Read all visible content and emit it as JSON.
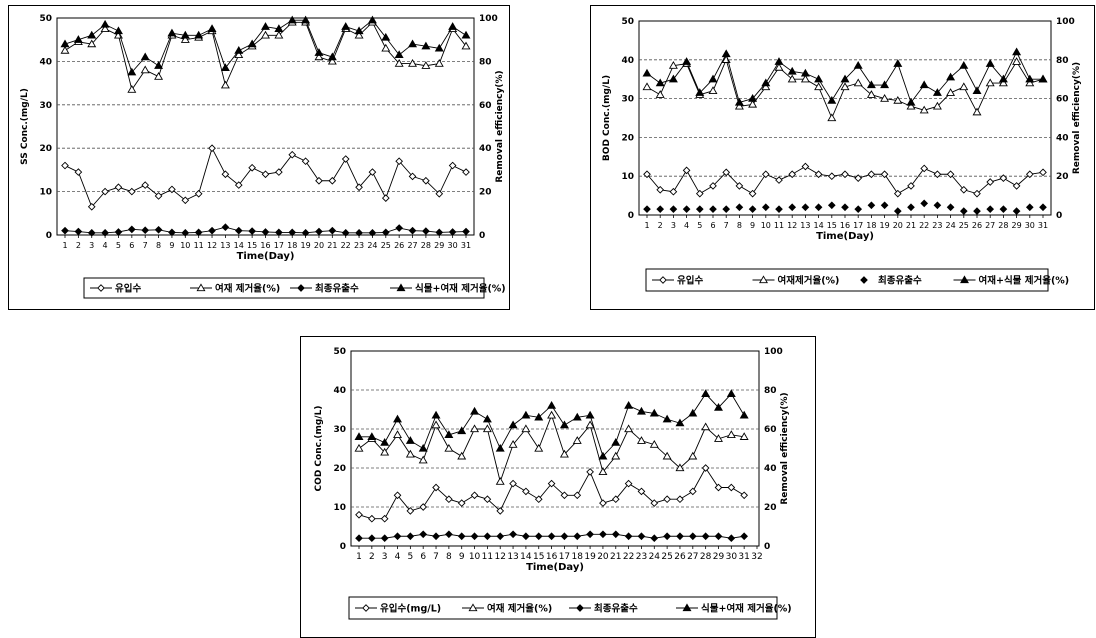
{
  "colors": {
    "line": "#000000",
    "grid": "#555555",
    "background": "#ffffff"
  },
  "chart_data": [
    {
      "type": "line",
      "x": [
        1,
        2,
        3,
        4,
        5,
        6,
        7,
        8,
        9,
        10,
        11,
        12,
        13,
        14,
        15,
        16,
        17,
        18,
        19,
        20,
        21,
        22,
        23,
        24,
        25,
        26,
        27,
        28,
        29,
        30,
        31
      ],
      "xlabel": "Time(Day)",
      "ylabel": "SS Conc.(mg/L)",
      "y2label": "Removal efficiency(%)",
      "ylim": [
        0,
        50
      ],
      "y2lim": [
        0,
        100
      ],
      "yticks": [
        0,
        10,
        20,
        30,
        40,
        50
      ],
      "y2ticks": [
        0,
        20,
        40,
        60,
        80,
        100
      ],
      "grid": "horizontal dashed",
      "legend_position": "bottom",
      "series": [
        {
          "name": "유입수",
          "axis": "left",
          "marker": "open-diamond",
          "values": [
            16,
            14.5,
            6.5,
            10,
            11,
            10,
            11.5,
            9,
            10.5,
            8,
            9.5,
            20,
            14,
            11.5,
            15.5,
            14,
            14.5,
            18.5,
            17,
            12.5,
            12.5,
            17.5,
            11,
            14.5,
            8.5,
            17,
            13.5,
            12.5,
            9.5,
            16,
            14.5
          ]
        },
        {
          "name": "여재 제거율(%)",
          "axis": "right",
          "marker": "open-triangle",
          "values": [
            85,
            89,
            88,
            95,
            92,
            67,
            76,
            73,
            92,
            90,
            91,
            94,
            69,
            83,
            87,
            92,
            92,
            98,
            98,
            82,
            80,
            95,
            92,
            98,
            86,
            79,
            79,
            78,
            79,
            95,
            87
          ]
        },
        {
          "name": "최종유출수",
          "axis": "left",
          "marker": "filled-diamond",
          "values": [
            1,
            0.8,
            0.5,
            0.5,
            0.7,
            1.3,
            1.1,
            1.2,
            0.6,
            0.5,
            0.6,
            1,
            1.8,
            1,
            0.9,
            0.7,
            0.6,
            0.6,
            0.5,
            0.8,
            1,
            0.5,
            0.5,
            0.5,
            0.6,
            1.6,
            1,
            0.9,
            0.6,
            0.7,
            0.8
          ]
        },
        {
          "name": "식물+여재 제거율(%)",
          "axis": "right",
          "marker": "filled-triangle",
          "values": [
            88,
            90,
            92,
            97,
            94,
            75,
            82,
            78,
            93,
            92,
            92,
            95,
            77,
            85,
            88,
            96,
            95,
            99,
            99,
            84,
            82,
            96,
            94,
            99,
            91,
            83,
            88,
            87,
            86,
            96,
            92
          ]
        }
      ]
    },
    {
      "type": "line",
      "x": [
        1,
        2,
        3,
        4,
        5,
        6,
        7,
        8,
        9,
        10,
        11,
        12,
        13,
        14,
        15,
        16,
        17,
        18,
        19,
        20,
        21,
        22,
        23,
        24,
        25,
        26,
        27,
        28,
        29,
        30,
        31
      ],
      "xlabel": "Time(Day)",
      "ylabel": "BOD Conc.(mg/L)",
      "y2label": "Removal efficiency(%)",
      "ylim": [
        0,
        50
      ],
      "y2lim": [
        0,
        100
      ],
      "yticks": [
        0,
        10,
        20,
        30,
        40,
        50
      ],
      "y2ticks": [
        0,
        20,
        40,
        60,
        80,
        100
      ],
      "grid": "horizontal dashed",
      "legend_position": "bottom",
      "series": [
        {
          "name": "유입수",
          "axis": "left",
          "marker": "open-diamond",
          "values": [
            10.5,
            6.5,
            6,
            11.5,
            5.5,
            7.5,
            11,
            7.5,
            5.5,
            10.5,
            9,
            10.5,
            12.5,
            10.5,
            10,
            10.5,
            9.5,
            10.5,
            10.5,
            5.5,
            7.5,
            12,
            10.5,
            10.5,
            6.5,
            5.5,
            8.5,
            9.5,
            7.5,
            10.5,
            11
          ]
        },
        {
          "name": "여재제거율(%)",
          "axis": "right",
          "marker": "open-triangle",
          "values": [
            66,
            62,
            77,
            78,
            62,
            64,
            80,
            56,
            57,
            66,
            76,
            70,
            70,
            66,
            50,
            66,
            68,
            62,
            60,
            59,
            56,
            54,
            56,
            63,
            66,
            53,
            68,
            68,
            79,
            68,
            70
          ]
        },
        {
          "name": "최종유출수",
          "axis": "left",
          "marker": "filled-diamond",
          "values": [
            1.5,
            1.5,
            1.5,
            1.5,
            1.5,
            1.5,
            1.5,
            2,
            1.5,
            2,
            1.5,
            2,
            2,
            2,
            2.5,
            2,
            1.5,
            2.5,
            2.5,
            1,
            2,
            3,
            2.5,
            2,
            1,
            1,
            1.5,
            1.5,
            1,
            2,
            2
          ]
        },
        {
          "name": "여재+식물 제거율(%)",
          "axis": "right",
          "marker": "filled-triangle",
          "values": [
            73,
            68,
            70,
            79,
            63,
            70,
            83,
            58,
            60,
            68,
            79,
            74,
            73,
            70,
            59,
            70,
            77,
            67,
            67,
            78,
            58,
            67,
            63,
            71,
            77,
            64,
            78,
            70,
            84,
            70,
            70
          ]
        }
      ]
    },
    {
      "type": "line",
      "x": [
        1,
        2,
        3,
        4,
        5,
        6,
        7,
        8,
        9,
        10,
        11,
        12,
        13,
        14,
        15,
        16,
        17,
        18,
        19,
        20,
        21,
        22,
        23,
        24,
        25,
        26,
        27,
        28,
        29,
        30,
        31
      ],
      "xticks": [
        1,
        2,
        3,
        4,
        5,
        6,
        7,
        8,
        9,
        10,
        11,
        12,
        13,
        14,
        15,
        16,
        17,
        18,
        19,
        20,
        21,
        22,
        23,
        24,
        25,
        26,
        27,
        28,
        29,
        30,
        31,
        32
      ],
      "xlabel": "Time(Day)",
      "ylabel": "COD Conc.(mg/L)",
      "y2label": "Removal efficiency(%)",
      "ylim": [
        0,
        50
      ],
      "y2lim": [
        0,
        100
      ],
      "yticks": [
        0,
        10,
        20,
        30,
        40,
        50
      ],
      "y2ticks": [
        0,
        20,
        40,
        60,
        80,
        100
      ],
      "grid": "horizontal dashed",
      "legend_position": "bottom",
      "series": [
        {
          "name": "유입수(mg/L)",
          "axis": "left",
          "marker": "open-diamond",
          "values": [
            8,
            7,
            7,
            13,
            9,
            10,
            15,
            12,
            11,
            13,
            12,
            9,
            16,
            14,
            12,
            16,
            13,
            13,
            19,
            11,
            12,
            16,
            14,
            11,
            12,
            12,
            14,
            20,
            15,
            15,
            13
          ]
        },
        {
          "name": "여재 제거율(%)",
          "axis": "right",
          "marker": "open-triangle",
          "values": [
            50,
            55,
            48,
            57,
            47,
            44,
            62,
            50,
            46,
            60,
            60,
            33,
            52,
            60,
            50,
            67,
            47,
            54,
            62,
            38,
            46,
            60,
            54,
            52,
            46,
            40,
            46,
            61,
            55,
            57,
            56
          ]
        },
        {
          "name": "최종유출수",
          "axis": "left",
          "marker": "filled-diamond",
          "values": [
            2,
            2,
            2,
            2.5,
            2.5,
            3,
            2.5,
            3,
            2.5,
            2.5,
            2.5,
            2.5,
            3,
            2.5,
            2.5,
            2.5,
            2.5,
            2.5,
            3,
            3,
            3,
            2.5,
            2.5,
            2,
            2.5,
            2.5,
            2.5,
            2.5,
            2.5,
            2,
            2.5
          ]
        },
        {
          "name": "식물+여재 제거율(%)",
          "axis": "right",
          "marker": "filled-triangle",
          "values": [
            56,
            56,
            53,
            65,
            54,
            50,
            67,
            57,
            59,
            69,
            65,
            50,
            62,
            67,
            66,
            72,
            62,
            66,
            67,
            46,
            53,
            72,
            69,
            68,
            65,
            63,
            68,
            78,
            71,
            78,
            67
          ]
        }
      ]
    }
  ]
}
